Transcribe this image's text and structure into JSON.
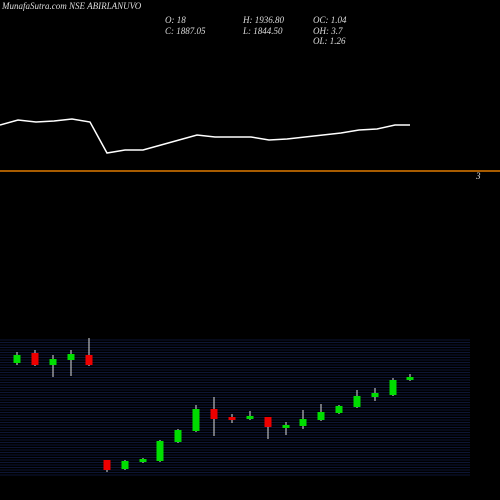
{
  "chart_data": [
    {
      "type": "line",
      "title": "MunafaSutra.com NSE ABIRLANUVO",
      "info": [
        "O: 18",
        "C: 1887.05",
        "H: 1936.80",
        "L: 1844.50",
        "OC: 1.04",
        "OH: 3.7",
        "OL: 1.26"
      ],
      "x": [
        0,
        18,
        36,
        54,
        72,
        90,
        107,
        125,
        143,
        161,
        179,
        197,
        215,
        233,
        251,
        269,
        287,
        305,
        323,
        341,
        359,
        377,
        395,
        410
      ],
      "values": [
        75,
        80,
        78,
        79,
        81,
        78,
        47,
        50,
        50,
        55,
        60,
        65,
        63,
        63,
        63,
        60,
        61,
        63,
        65,
        67,
        70,
        71,
        75,
        75
      ],
      "color": "#ffffff",
      "xlim": [
        0,
        500
      ],
      "ylim": [
        0,
        200
      ],
      "hline": {
        "value": 29,
        "label": "3",
        "color": "#e07b00"
      }
    },
    {
      "type": "candlestick",
      "up_color": "#00dd00",
      "down_color": "#ee0000",
      "grid_color": "#1a2a6a",
      "xlim": [
        0,
        500
      ],
      "ylim": [
        25,
        160
      ],
      "x": [
        17,
        35,
        53,
        71,
        89,
        107,
        125,
        143,
        160,
        178,
        196,
        214,
        232,
        250,
        268,
        286,
        303,
        321,
        339,
        357,
        375,
        393,
        410
      ],
      "open": [
        137,
        147,
        135,
        140,
        145,
        40,
        31,
        38,
        39,
        58,
        69,
        91,
        83,
        81,
        83,
        72,
        74,
        80,
        87,
        93,
        103,
        105,
        120
      ],
      "high": [
        148,
        150,
        145,
        150,
        162,
        40,
        40,
        42,
        60,
        71,
        95,
        103,
        86,
        89,
        83,
        78,
        90,
        96,
        95,
        110,
        112,
        122,
        126
      ],
      "low": [
        135,
        134,
        123,
        124,
        134,
        28,
        30,
        37,
        38,
        57,
        68,
        64,
        77,
        80,
        61,
        65,
        71,
        79,
        86,
        92,
        99,
        104,
        119
      ],
      "close": [
        145,
        135,
        141,
        146,
        135,
        30,
        39,
        41,
        59,
        70,
        91,
        81,
        80,
        84,
        73,
        75,
        81,
        88,
        94,
        104,
        107,
        120,
        123
      ]
    }
  ]
}
